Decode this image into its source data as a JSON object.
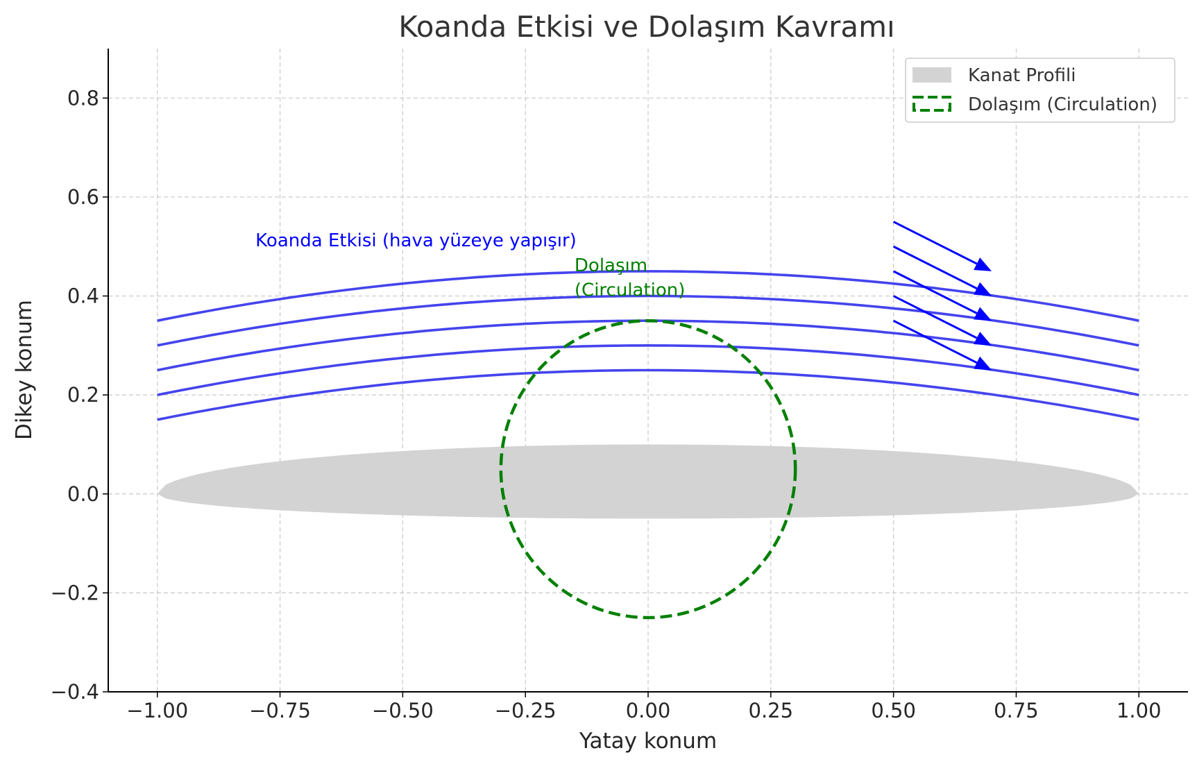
{
  "chart_data": {
    "type": "line",
    "title": "Koanda Etkisi ve Dolaşım Kavramı",
    "xlabel": "Yatay konum",
    "ylabel": "Dikey konum",
    "xlim": [
      -1.1,
      1.1
    ],
    "ylim": [
      -0.4,
      0.9
    ],
    "x_ticks": [
      -1.0,
      -0.75,
      -0.5,
      -0.25,
      0.0,
      0.25,
      0.5,
      0.75,
      1.0
    ],
    "x_tick_labels": [
      "−1.00",
      "−0.75",
      "−0.50",
      "−0.25",
      "0.00",
      "0.25",
      "0.50",
      "0.75",
      "1.00"
    ],
    "y_ticks": [
      -0.4,
      -0.2,
      0.0,
      0.2,
      0.4,
      0.6,
      0.8
    ],
    "y_tick_labels": [
      "−0.4",
      "−0.2",
      "0.0",
      "0.2",
      "0.4",
      "0.6",
      "0.8"
    ],
    "grid": true,
    "legend_position": "top-right",
    "legend": [
      {
        "label": "Kanat Profili",
        "style": "fill",
        "color": "#d3d3d3"
      },
      {
        "label": "Dolaşım (Circulation)",
        "style": "dashed",
        "color": "#008000"
      }
    ],
    "airfoil": {
      "x_range": [
        -1.0,
        1.0
      ],
      "upper_max": 0.1,
      "lower_min": -0.05,
      "color": "#d3d3d3"
    },
    "streamlines": {
      "color": "#4444ee",
      "x_range": [
        -1.0,
        1.0
      ],
      "curvature": 0.1,
      "peak_values": [
        0.25,
        0.3,
        0.35,
        0.4,
        0.45
      ]
    },
    "circulation": {
      "center": [
        0.0,
        0.05
      ],
      "radius": 0.3,
      "color": "#008000"
    },
    "arrows": {
      "color": "#0000ff",
      "items": [
        {
          "x": 0.5,
          "y": 0.35,
          "dx": 0.2,
          "dy": -0.1
        },
        {
          "x": 0.5,
          "y": 0.4,
          "dx": 0.2,
          "dy": -0.1
        },
        {
          "x": 0.5,
          "y": 0.45,
          "dx": 0.2,
          "dy": -0.1
        },
        {
          "x": 0.5,
          "y": 0.5,
          "dx": 0.2,
          "dy": -0.1
        },
        {
          "x": 0.5,
          "y": 0.55,
          "dx": 0.2,
          "dy": -0.1
        }
      ]
    },
    "annotations": [
      {
        "text": "Koanda Etkisi (hava yüzeye yapışır)",
        "x": -0.8,
        "y": 0.5,
        "color": "#0000ff"
      },
      {
        "text": "Dolaşım",
        "x": -0.15,
        "y": 0.45,
        "color": "#008000"
      },
      {
        "text": "(Circulation)",
        "x": -0.15,
        "y": 0.4,
        "color": "#008000"
      }
    ]
  }
}
